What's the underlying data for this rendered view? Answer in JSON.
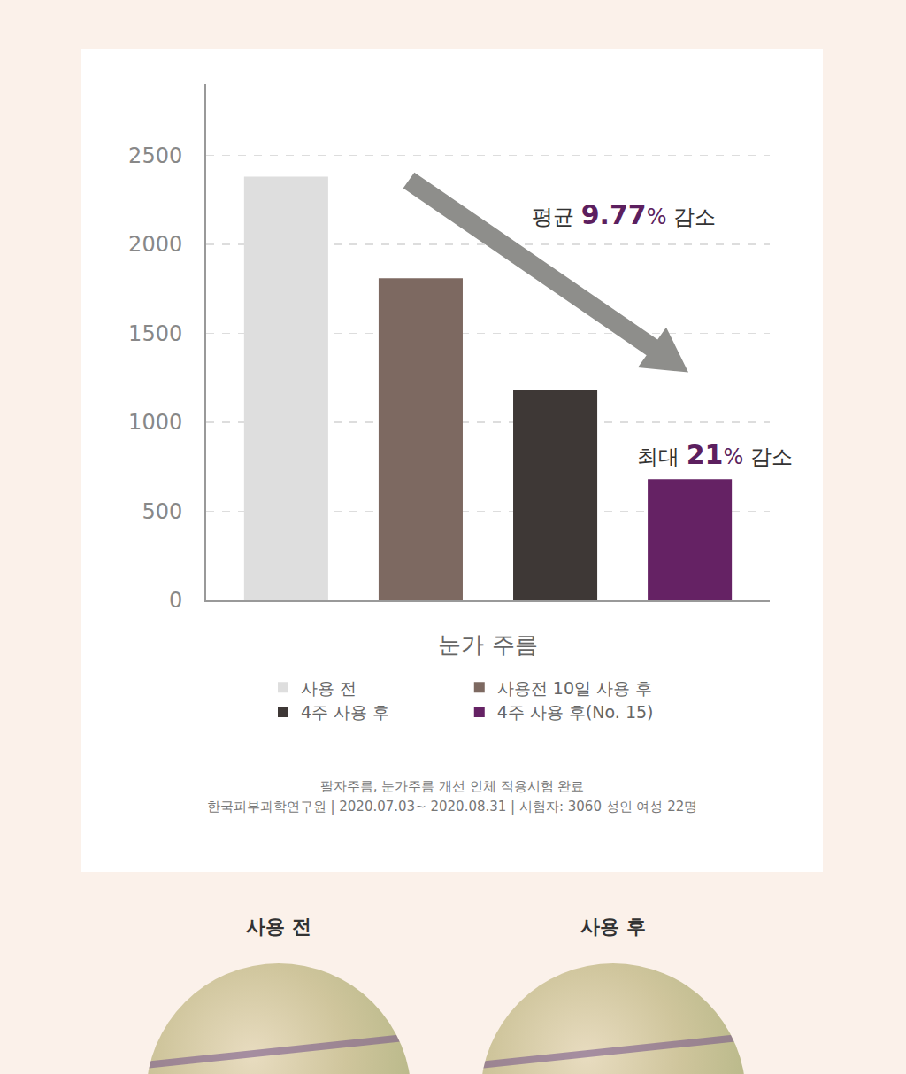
{
  "chart_data": {
    "type": "bar",
    "categories": [
      null
    ],
    "xlabel": "눈가 주름",
    "series": [
      {
        "name": "사용 전",
        "color": "#dedede",
        "values": [
          2380
        ]
      },
      {
        "name": "사용전 10일 사용 후",
        "color": "#7d6961",
        "values": [
          1810
        ]
      },
      {
        "name": "4주 사용 후",
        "color": "#3e3836",
        "values": [
          1180
        ]
      },
      {
        "name": "4주 사용 후(No. 15)",
        "color": "#652264",
        "values": [
          680
        ]
      }
    ],
    "ylim": [
      0,
      2900
    ],
    "yticks": [
      0,
      500,
      1000,
      1500,
      2000,
      2500
    ],
    "grid": true,
    "legend": "bottom",
    "tick_labels": "y",
    "annotations": [
      "평균 9.77% 감소",
      "최대 21% 감소"
    ],
    "footnote": [
      "팔자주름, 눈가주름 개선 인체 적용시험 완료",
      "한국피부과학연구원 | 2020.07.03~ 2020.08.31 | 시험자: 3060 성인 여성 22명"
    ]
  },
  "comparison": {
    "labels": [
      "사용 전",
      "사용 후"
    ]
  }
}
